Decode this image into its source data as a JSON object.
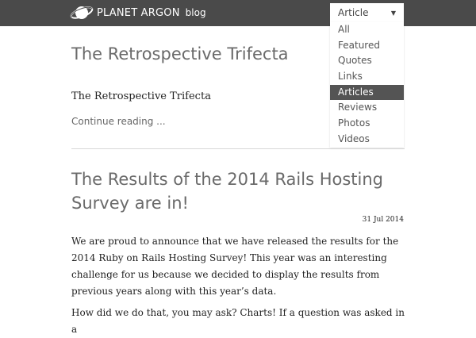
{
  "header": {
    "brand": "PLANET ARGON",
    "brand_sub": "blog",
    "logo_icon": "planet-icon"
  },
  "filter": {
    "selected": "Article",
    "caret_icon": "caret-down-icon",
    "options": [
      "All",
      "Featured",
      "Quotes",
      "Links",
      "Articles",
      "Reviews",
      "Photos",
      "Videos"
    ],
    "active": "Articles"
  },
  "posts": [
    {
      "title": "The Retrospective Trifecta",
      "subtitle": "The Retrospective Trifecta",
      "continue": "Continue reading ..."
    },
    {
      "title": "The Results of the 2014 Rails Hosting Survey are in!",
      "date": "31 Jul 2014",
      "paragraphs": [
        "We are proud to announce that we have released the results for the 2014 Ruby on Rails Hosting Survey! This year was an interesting challenge for us because we decided to display the results from previous years along with this year’s data.",
        "How did we do that, you may ask? Charts! If a question was asked in a"
      ]
    }
  ],
  "colors": {
    "header_bg": "#4a4a4a",
    "menu_active_bg": "#545454",
    "title_color": "#6a6a6a"
  }
}
